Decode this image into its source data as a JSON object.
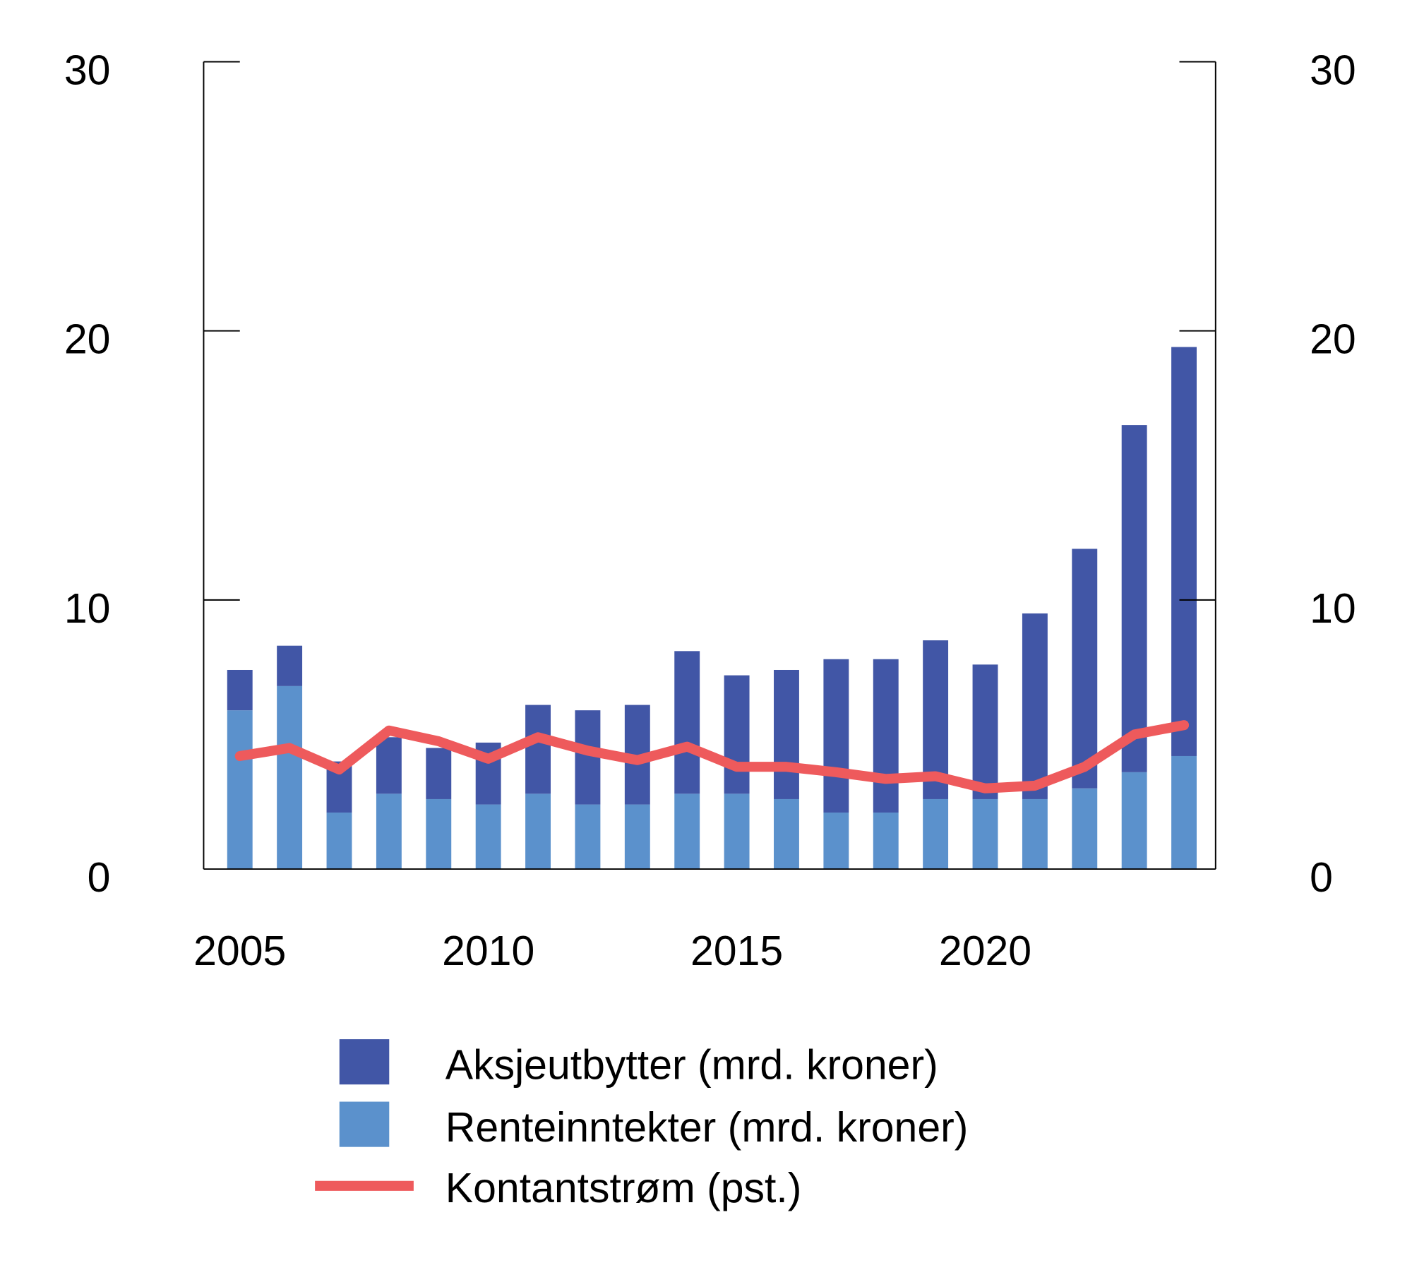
{
  "chart_data": {
    "type": "bar",
    "stacked": true,
    "x": [
      2005,
      2006,
      2007,
      2008,
      2009,
      2010,
      2011,
      2012,
      2013,
      2014,
      2015,
      2016,
      2017,
      2018,
      2019,
      2020,
      2021,
      2022,
      2023,
      2024
    ],
    "x_tick_labels": [
      "2005",
      "2010",
      "2015",
      "2020"
    ],
    "y_tick_labels": [
      "0",
      "10",
      "20",
      "30"
    ],
    "ylim": [
      0,
      30
    ],
    "y2lim": [
      0,
      30
    ],
    "grid": false,
    "legend_position": "bottom",
    "series": [
      {
        "name": "Renteinntekter (mrd. kroner)",
        "type": "bar",
        "color": "#5b91cc",
        "values": [
          5.9,
          6.8,
          2.1,
          2.8,
          2.6,
          2.4,
          2.8,
          2.4,
          2.4,
          2.8,
          2.8,
          2.6,
          2.1,
          2.1,
          2.6,
          2.6,
          2.6,
          3.0,
          3.6,
          4.2
        ]
      },
      {
        "name": "Aksjeutbytter (mrd. kroner)",
        "type": "bar",
        "color": "#4156a6",
        "values": [
          1.5,
          1.5,
          1.9,
          2.1,
          1.9,
          2.3,
          3.3,
          3.5,
          3.7,
          5.3,
          4.4,
          4.8,
          5.7,
          5.7,
          5.9,
          5.0,
          6.9,
          8.9,
          12.9,
          15.2
        ]
      },
      {
        "name": "Kontantstrøm (pst.)",
        "type": "line",
        "axis": "right",
        "color": "#ee5a5c",
        "values": [
          4.2,
          4.5,
          3.7,
          5.15,
          4.75,
          4.1,
          4.9,
          4.4,
          4.05,
          4.55,
          3.8,
          3.8,
          3.6,
          3.35,
          3.45,
          3.0,
          3.1,
          3.8,
          5.0,
          5.35
        ]
      }
    ]
  }
}
